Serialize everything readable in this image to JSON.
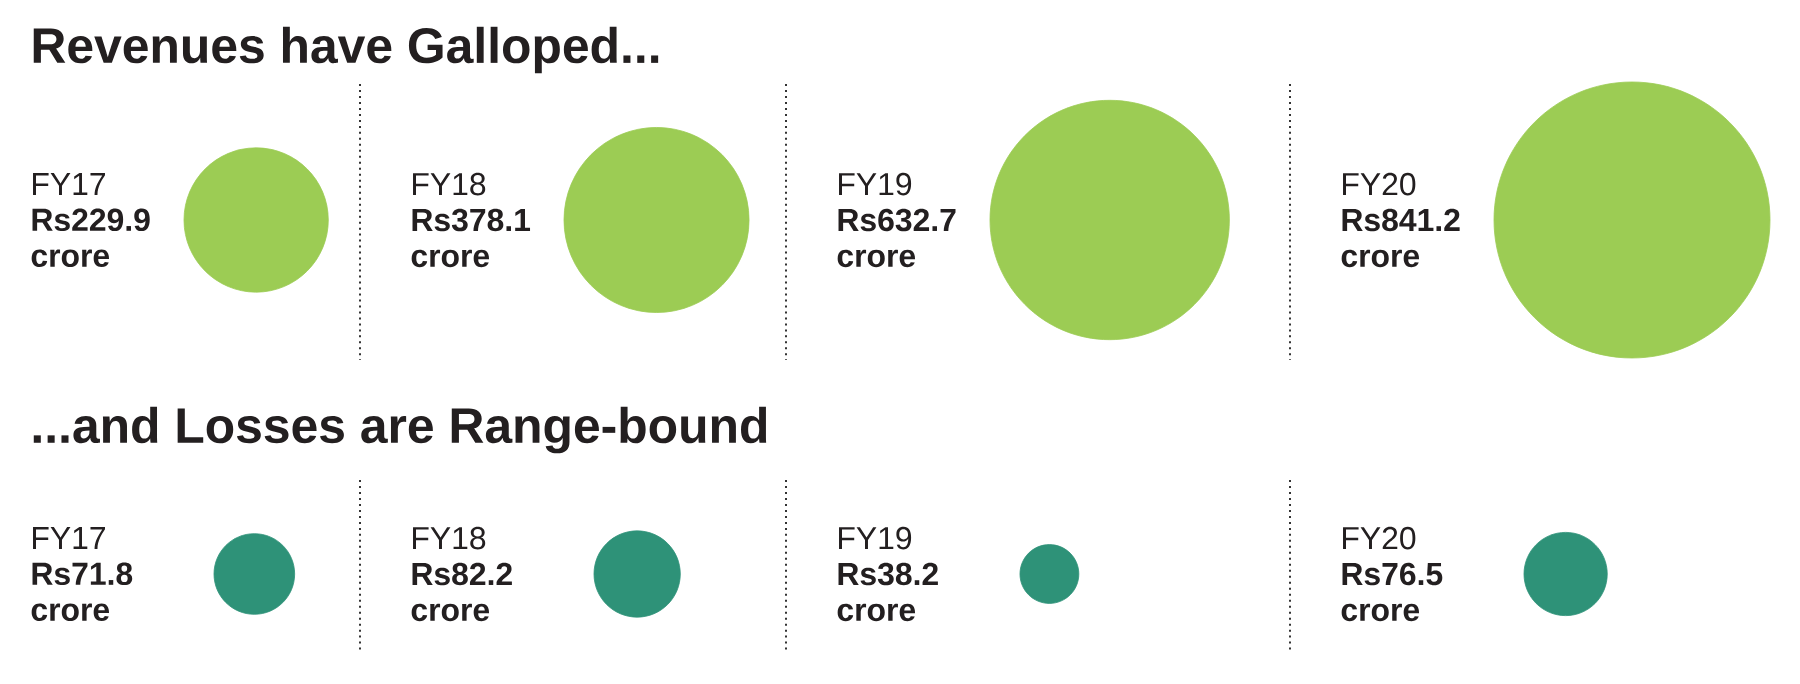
{
  "chart_data": [
    {
      "type": "other",
      "title": "Revenues have Galloped...",
      "categories": [
        "FY17",
        "FY18",
        "FY19",
        "FY20"
      ],
      "values": [
        229.9,
        378.1,
        632.7,
        841.2
      ],
      "value_labels": [
        "Rs229.9 crore",
        "Rs378.1 crore",
        "Rs632.7 crore",
        "Rs841.2 crore"
      ],
      "color": "#9ccc54"
    },
    {
      "type": "other",
      "title": "...and Losses are Range-bound",
      "categories": [
        "FY17",
        "FY18",
        "FY19",
        "FY20"
      ],
      "values": [
        71.8,
        82.2,
        38.2,
        76.5
      ],
      "value_labels": [
        "Rs71.8 crore",
        "Rs82.2 crore",
        "Rs38.2 crore",
        "Rs76.5 crore"
      ],
      "color": "#2e9278"
    }
  ]
}
